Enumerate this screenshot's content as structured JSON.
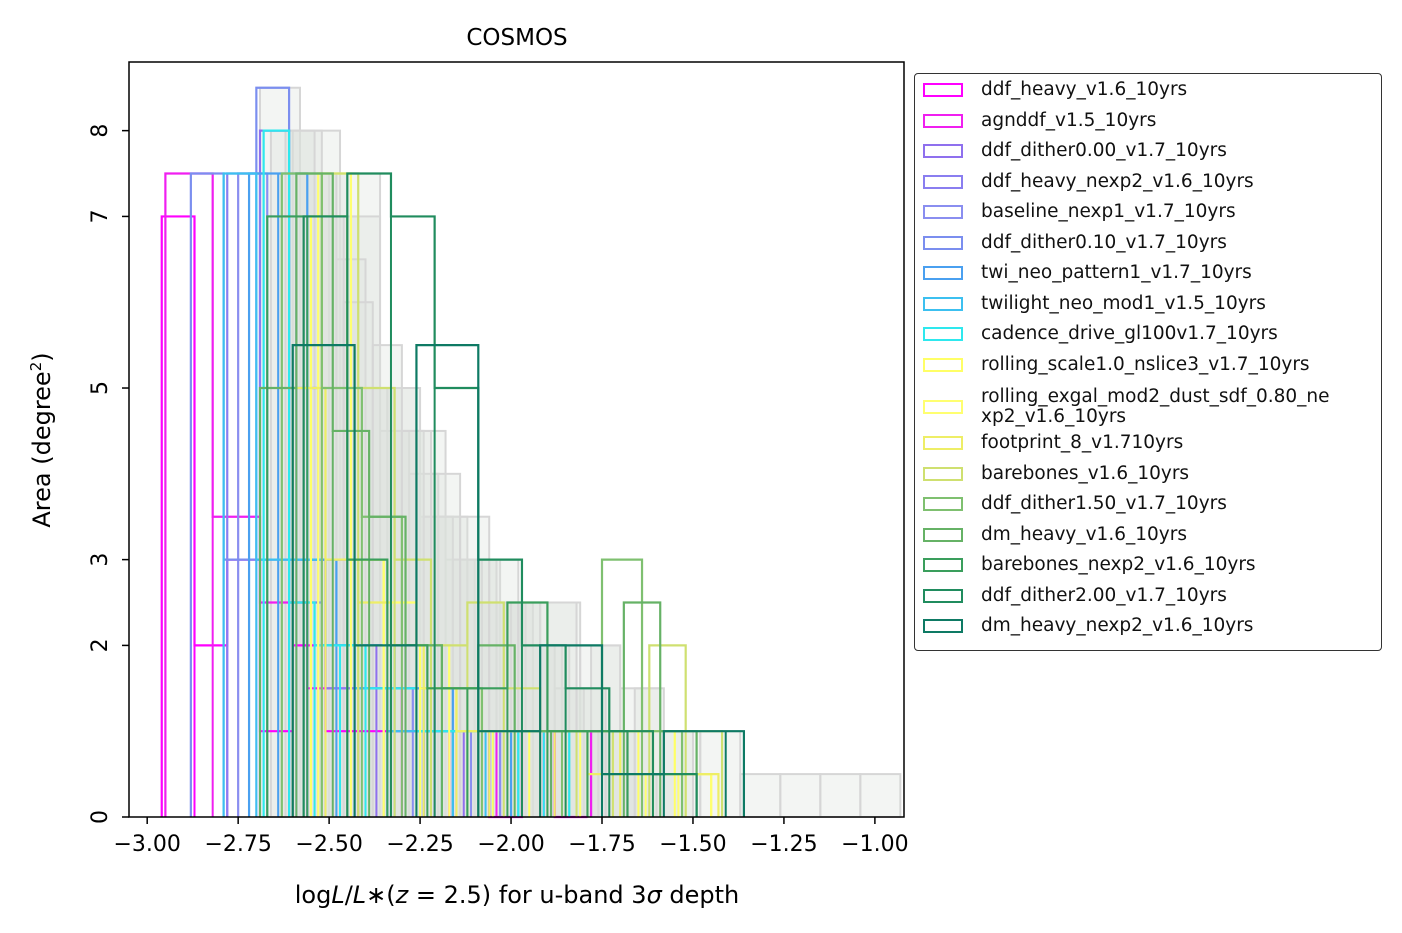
{
  "chart_data": {
    "type": "histogram",
    "title": "COSMOS",
    "xlabel": "logL/L*(z = 2.5) for u-band 3σ depth",
    "ylabel": "Area (degree²)",
    "xlim": [
      -3.05,
      -0.92
    ],
    "ylim": [
      0,
      8.8
    ],
    "xticks": [
      -3.0,
      -2.75,
      -2.5,
      -2.25,
      -2.0,
      -1.75,
      -1.5,
      -1.25,
      -1.0
    ],
    "xtick_labels": [
      "−3.00",
      "−2.75",
      "−2.50",
      "−2.25",
      "−2.00",
      "−1.75",
      "−1.50",
      "−1.25",
      "−1.00"
    ],
    "yticks": [
      0,
      2,
      3,
      5,
      7,
      8
    ],
    "ytick_labels": [
      "0",
      "2",
      "3",
      "5",
      "7",
      "8"
    ],
    "legend_position": "outside-right",
    "grey_color": "#d6d6d6",
    "grey_fill": "#dde2dd",
    "grey_series": [
      {
        "x": [
          -2.69,
          -2.58,
          -2.47,
          -2.36,
          -2.25,
          -2.14,
          -2.03,
          -1.92,
          -1.81,
          -1.7,
          -1.59,
          -1.48,
          -1.37,
          -1.26,
          -1.15,
          -1.04
        ],
        "values": [
          8.5,
          8.0,
          7.5,
          5.0,
          3.5,
          3.0,
          2.5,
          2.5,
          2.0,
          1.5,
          1.0,
          1.0,
          0.5,
          0.5,
          0.5,
          0.5
        ]
      },
      {
        "x": [
          -2.66,
          -2.58,
          -2.5,
          -2.42,
          -2.34,
          -2.26,
          -2.18,
          -2.1,
          -2.02,
          -1.94,
          -1.86,
          -1.78,
          -1.7,
          -1.62
        ],
        "values": [
          8.0,
          7.5,
          7.0,
          5.0,
          5.0,
          4.5,
          3.0,
          2.5,
          2.5,
          2.0,
          1.5,
          2.0,
          1.0,
          0.5
        ]
      },
      {
        "x": [
          -2.6,
          -2.52,
          -2.44,
          -2.36,
          -2.28,
          -2.2,
          -2.12,
          -2.04,
          -1.96,
          -1.88,
          -1.8,
          -1.72
        ],
        "values": [
          8.0,
          7.5,
          7.0,
          4.5,
          4.0,
          3.5,
          3.0,
          2.5,
          2.0,
          1.5,
          1.0,
          0.5
        ]
      },
      {
        "x": [
          -2.64,
          -2.56,
          -2.48,
          -2.4,
          -2.32,
          -2.24,
          -2.16,
          -2.08,
          -2.0,
          -1.92,
          -1.84,
          -1.76,
          -1.68
        ],
        "values": [
          7.5,
          7.5,
          6.5,
          5.0,
          4.5,
          3.5,
          3.0,
          2.5,
          2.5,
          2.0,
          1.0,
          1.0,
          0.5
        ]
      },
      {
        "x": [
          -2.62,
          -2.54,
          -2.46,
          -2.38,
          -2.3,
          -2.22,
          -2.14,
          -2.06,
          -1.98,
          -1.9,
          -1.82,
          -1.74,
          -1.66,
          -1.58
        ],
        "values": [
          8.0,
          7.0,
          6.0,
          5.5,
          4.5,
          4.0,
          3.5,
          3.0,
          2.5,
          2.5,
          1.5,
          1.0,
          1.5,
          1.0
        ]
      }
    ],
    "series": [
      {
        "name": "ddf_heavy_v1.6_10yrs",
        "color": "#ff00ff",
        "edges": [
          -2.96,
          -2.87,
          -2.78,
          -2.69,
          -2.6,
          -2.51,
          -2.42,
          -2.33,
          -2.24,
          -2.15,
          -2.06,
          -1.97,
          -1.88,
          -1.79
        ],
        "values": [
          7.0,
          2.0,
          3.0,
          1.0,
          2.0,
          1.0,
          1.0,
          1.0,
          1.0,
          1.0,
          0.0,
          1.0,
          0.0
        ]
      },
      {
        "name": "agnddf_v1.5_10yrs",
        "color": "#f01ff0",
        "edges": [
          -2.95,
          -2.82,
          -2.69,
          -2.56,
          -2.43,
          -2.3,
          -2.17,
          -2.04,
          -1.91,
          -1.78
        ],
        "values": [
          7.5,
          3.5,
          2.5,
          1.5,
          1.5,
          1.0,
          1.0,
          1.0,
          1.0
        ]
      },
      {
        "name": "ddf_dither0.00_v1.7_10yrs",
        "color": "#8f70ee",
        "edges": [
          -2.69,
          -2.61,
          -2.53,
          -2.45,
          -2.37,
          -2.29,
          -2.21,
          -2.13,
          -2.05,
          -1.97,
          -1.89
        ],
        "values": [
          8.0,
          5.0,
          3.0,
          2.0,
          2.0,
          1.5,
          1.0,
          1.0,
          1.0,
          1.0
        ]
      },
      {
        "name": "ddf_heavy_nexp2_v1.6_10yrs",
        "color": "#8a7ef0",
        "edges": [
          -2.78,
          -2.69,
          -2.6,
          -2.51,
          -2.42,
          -2.33,
          -2.24,
          -2.15,
          -2.06
        ],
        "values": [
          7.5,
          3.0,
          3.0,
          1.5,
          1.5,
          1.0,
          1.0,
          1.0
        ]
      },
      {
        "name": "baseline_nexp1_v1.7_10yrs",
        "color": "#8a8ef0",
        "edges": [
          -2.75,
          -2.67,
          -2.59,
          -2.51,
          -2.43,
          -2.35,
          -2.27,
          -2.19,
          -2.11,
          -2.03
        ],
        "values": [
          7.5,
          7.0,
          3.0,
          2.0,
          1.5,
          1.5,
          1.0,
          1.0,
          1.0
        ]
      },
      {
        "name": "ddf_dither0.10_v1.7_10yrs",
        "color": "#7b8eef",
        "edges": [
          -2.88,
          -2.79,
          -2.7,
          -2.61,
          -2.52,
          -2.43,
          -2.34,
          -2.25,
          -2.16
        ],
        "values": [
          7.5,
          3.0,
          8.5,
          2.5,
          2.0,
          1.5,
          1.0,
          1.0
        ]
      },
      {
        "name": "twi_neo_pattern1_v1.7_10yrs",
        "color": "#4aa0f0",
        "edges": [
          -2.72,
          -2.64,
          -2.56,
          -2.48,
          -2.4,
          -2.32,
          -2.24,
          -2.16,
          -2.08,
          -2.0
        ],
        "values": [
          7.5,
          7.5,
          3.0,
          2.0,
          2.0,
          1.5,
          1.5,
          1.0,
          1.0
        ]
      },
      {
        "name": "twilight_neo_mod1_v1.5_10yrs",
        "color": "#3cc0f0",
        "edges": [
          -2.79,
          -2.7,
          -2.61,
          -2.52,
          -2.43,
          -2.34,
          -2.25,
          -2.16,
          -2.07,
          -1.98
        ],
        "values": [
          7.5,
          3.0,
          3.0,
          2.0,
          1.5,
          1.0,
          1.0,
          1.0,
          1.0
        ]
      },
      {
        "name": "cadence_drive_gl100v1.7_10yrs",
        "color": "#2ee8ee",
        "edges": [
          -2.68,
          -2.61,
          -2.54,
          -2.47,
          -2.4,
          -2.33,
          -2.26,
          -2.19,
          -2.12,
          -2.05,
          -1.98,
          -1.91,
          -1.84
        ],
        "values": [
          8.0,
          2.5,
          2.0,
          2.0,
          1.5,
          1.5,
          1.0,
          1.0,
          1.0,
          1.0,
          1.0,
          1.0
        ]
      },
      {
        "name": "rolling_scale1.0_nslice3_v1.7_10yrs",
        "color": "#ffff66",
        "edges": [
          -2.55,
          -2.45,
          -2.35,
          -2.25,
          -2.15,
          -2.05,
          -1.95,
          -1.85,
          -1.75,
          -1.65,
          -1.55,
          -1.45
        ],
        "values": [
          7.0,
          3.0,
          2.0,
          1.5,
          1.0,
          1.0,
          1.0,
          1.0,
          1.0,
          1.0,
          0.5
        ]
      },
      {
        "name": "rolling_exgal_mod2_dust_sdf_0.80_ne\nxp2_v1.6_10yrs",
        "color": "#ffff70",
        "edges": [
          -2.53,
          -2.44,
          -2.35,
          -2.26,
          -2.17,
          -2.08,
          -1.99,
          -1.9,
          -1.81,
          -1.72,
          -1.63,
          -1.54,
          -1.45
        ],
        "values": [
          7.5,
          3.0,
          2.5,
          2.0,
          1.5,
          1.0,
          1.0,
          1.0,
          1.0,
          0.5,
          0.5,
          0.5
        ]
      },
      {
        "name": "footprint_8_v1.710yrs",
        "color": "#eeee66",
        "edges": [
          -2.6,
          -2.51,
          -2.42,
          -2.33,
          -2.24,
          -2.15,
          -2.06,
          -1.97,
          -1.88,
          -1.79,
          -1.7,
          -1.61,
          -1.52,
          -1.43
        ],
        "values": [
          5.0,
          3.0,
          2.5,
          2.0,
          1.5,
          1.0,
          1.0,
          1.0,
          1.0,
          0.5,
          1.0,
          0.5,
          0.5
        ]
      },
      {
        "name": "barebones_v1.6_10yrs",
        "color": "#cfe070",
        "edges": [
          -2.52,
          -2.42,
          -2.32,
          -2.22,
          -2.12,
          -2.02,
          -1.92,
          -1.82,
          -1.72,
          -1.62,
          -1.52,
          -1.42
        ],
        "values": [
          7.5,
          5.0,
          3.0,
          2.0,
          2.5,
          1.5,
          1.0,
          1.0,
          1.0,
          2.0,
          1.0
        ]
      },
      {
        "name": "ddf_dither1.50_v1.7_10yrs",
        "color": "#7fc070",
        "edges": [
          -2.63,
          -2.52,
          -2.41,
          -2.3,
          -2.19,
          -2.08,
          -1.97,
          -1.86,
          -1.75,
          -1.64,
          -1.53
        ],
        "values": [
          7.5,
          5.0,
          3.5,
          2.0,
          1.5,
          1.0,
          1.0,
          1.0,
          3.0,
          1.0
        ]
      },
      {
        "name": "dm_heavy_v1.6_10yrs",
        "color": "#66b266",
        "edges": [
          -2.69,
          -2.59,
          -2.49,
          -2.39,
          -2.29,
          -2.19,
          -2.09,
          -1.99,
          -1.89,
          -1.79,
          -1.69,
          -1.59,
          -1.49
        ],
        "values": [
          5.0,
          7.5,
          4.5,
          3.5,
          2.0,
          1.5,
          2.0,
          1.0,
          1.0,
          1.0,
          2.5,
          1.0
        ]
      },
      {
        "name": "barebones_nexp2_v1.6_10yrs",
        "color": "#3a9e5c",
        "edges": [
          -2.67,
          -2.56,
          -2.45,
          -2.34,
          -2.23,
          -2.12,
          -2.01,
          -1.9,
          -1.79,
          -1.68
        ],
        "values": [
          7.0,
          7.0,
          3.0,
          2.0,
          1.5,
          1.5,
          2.5,
          1.0,
          1.0
        ]
      },
      {
        "name": "ddf_dither2.00_v1.7_10yrs",
        "color": "#208c5e",
        "edges": [
          -2.57,
          -2.45,
          -2.33,
          -2.21,
          -2.09,
          -1.97,
          -1.85,
          -1.73,
          -1.61,
          -1.49
        ],
        "values": [
          7.0,
          7.5,
          7.0,
          5.0,
          3.0,
          2.0,
          1.5,
          1.0,
          0.5
        ]
      },
      {
        "name": "dm_heavy_nexp2_v1.6_10yrs",
        "color": "#0e7a64",
        "edges": [
          -2.6,
          -2.43,
          -2.26,
          -2.09,
          -1.92,
          -1.75,
          -1.58,
          -1.41,
          -1.36
        ],
        "values": [
          5.5,
          2.0,
          5.5,
          1.0,
          2.0,
          0.5,
          1.0,
          1.0
        ]
      }
    ]
  }
}
